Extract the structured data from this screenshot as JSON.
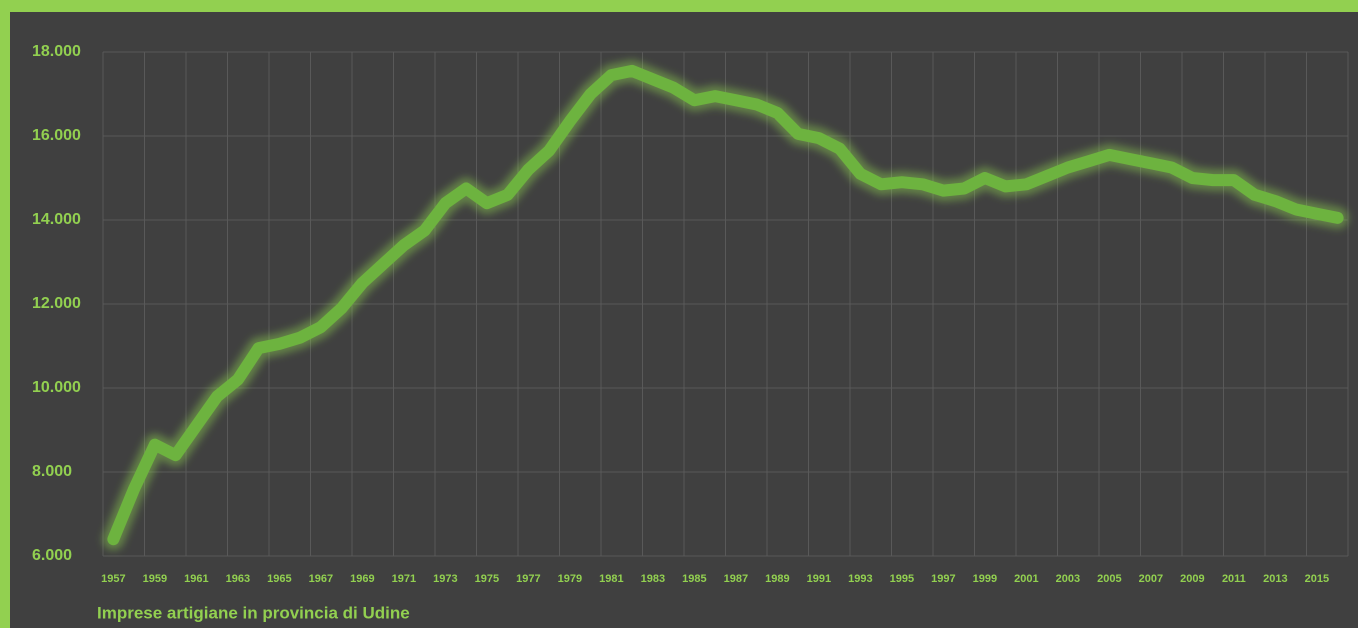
{
  "chart_data": {
    "type": "line",
    "title": "Imprese artigiane in provincia di Udine",
    "categories": [
      "1957",
      null,
      "1959",
      null,
      "1961",
      null,
      "1963",
      null,
      "1965",
      null,
      "1967",
      null,
      "1969",
      null,
      "1971",
      null,
      "1973",
      null,
      "1975",
      null,
      "1977",
      null,
      "1979",
      null,
      "1981",
      null,
      "1983",
      null,
      "1985",
      null,
      "1987",
      null,
      "1989",
      null,
      "1991",
      null,
      "1993",
      null,
      "1995",
      null,
      "1997",
      null,
      "1999",
      null,
      "2001",
      null,
      "2003",
      null,
      "2005",
      null,
      "2007",
      null,
      "2009",
      null,
      "2011",
      null,
      "2013",
      null,
      "2015",
      null
    ],
    "values": [
      6400,
      7600,
      8650,
      8400,
      9100,
      9800,
      10200,
      10950,
      11050,
      11200,
      11450,
      11900,
      12500,
      12950,
      13400,
      13750,
      14400,
      14750,
      14400,
      14600,
      15200,
      15650,
      16350,
      17000,
      17450,
      17550,
      17350,
      17150,
      16850,
      16950,
      16850,
      16750,
      16550,
      16050,
      15950,
      15700,
      15100,
      14850,
      14900,
      14850,
      14700,
      14750,
      15000,
      14800,
      14850,
      15050,
      15250,
      15400,
      15550,
      15450,
      15350,
      15250,
      15000,
      14950,
      14950,
      14600,
      14450,
      14250,
      14150,
      14050
    ],
    "color": "#6db33f",
    "ylim": [
      6000,
      18000
    ],
    "yticks": [
      {
        "value": 6000,
        "label": "6.000"
      },
      {
        "value": 8000,
        "label": "8.000"
      },
      {
        "value": 10000,
        "label": "10.000"
      },
      {
        "value": 12000,
        "label": "12.000"
      },
      {
        "value": 14000,
        "label": "14.000"
      },
      {
        "value": 16000,
        "label": "16.000"
      },
      {
        "value": 18000,
        "label": "18.000"
      }
    ],
    "grid": true
  }
}
